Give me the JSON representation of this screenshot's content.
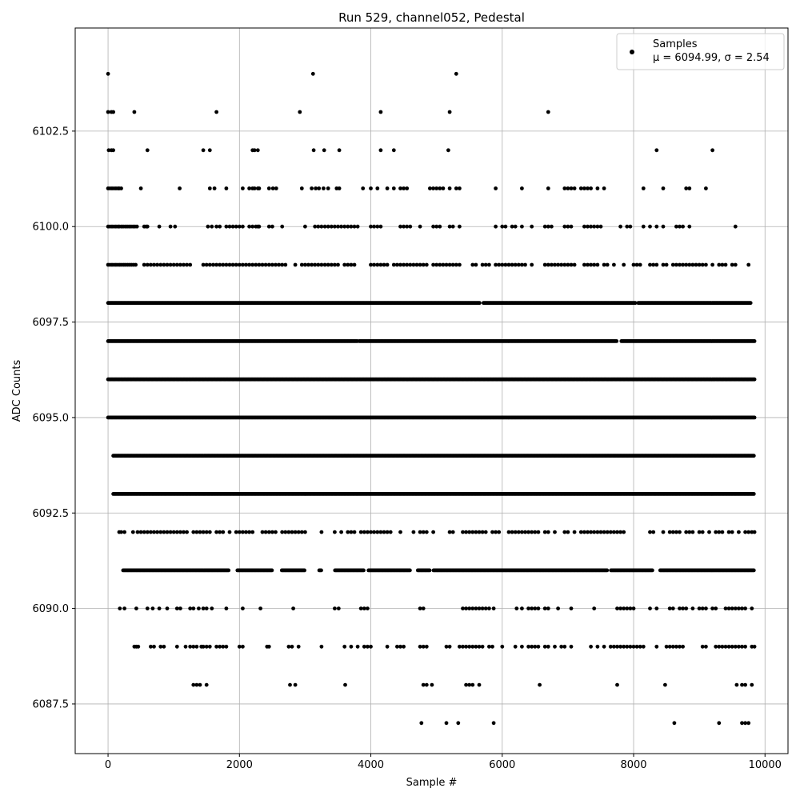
{
  "chart_data": {
    "type": "scatter",
    "title": "Run 529, channel052, Pedestal",
    "xlabel": "Sample #",
    "ylabel": "ADC Counts",
    "xlim": [
      -500,
      10350
    ],
    "ylim": [
      6086.2,
      6105.2
    ],
    "x_ticks": [
      0,
      2000,
      4000,
      6000,
      8000,
      10000
    ],
    "y_ticks": [
      6087.5,
      6090.0,
      6092.5,
      6095.0,
      6097.5,
      6100.0,
      6102.5
    ],
    "x_tick_labels": [
      "0",
      "2000",
      "4000",
      "6000",
      "8000",
      "10000"
    ],
    "y_tick_labels": [
      "6087.5",
      "6090.0",
      "6092.5",
      "6095.0",
      "6097.5",
      "6100.0",
      "6102.5"
    ],
    "grid": true,
    "legend_position": "top-right",
    "legend": {
      "label": "Samples",
      "stats": "μ = 6094.99, σ = 2.54"
    },
    "series": [
      {
        "name": "Samples",
        "color": "#000000",
        "levels": [
          {
            "y": 6104,
            "x": [
              0,
              3120,
              5300
            ]
          },
          {
            "y": 6103,
            "x": [
              0,
              50,
              80,
              400,
              1650,
              2920,
              4150,
              5200,
              6700
            ]
          },
          {
            "y": 6102,
            "x": [
              10,
              50,
              80,
              600,
              1450,
              1550,
              2200,
              2230,
              2280,
              3130,
              3290,
              3520,
              4150,
              4350,
              5180,
              8350,
              9200
            ]
          },
          {
            "y": 6101,
            "x": [
              0,
              30,
              60,
              90,
              120,
              150,
              170,
              200,
              500,
              1090,
              1550,
              1620,
              1800,
              2050,
              2150,
              2200,
              2230,
              2280,
              2300,
              2450,
              2510,
              2560,
              2950,
              3100,
              3160,
              3210,
              3280,
              3350,
              3480,
              3520,
              3880,
              4000,
              4100,
              4250,
              4350,
              4450,
              4500,
              4550,
              4900,
              4950,
              5000,
              5050,
              5100,
              5200,
              5300,
              5350,
              5900,
              6300,
              6700,
              6950,
              7000,
              7050,
              7100,
              7200,
              7250,
              7300,
              7350,
              7450,
              7550,
              8150,
              8450,
              8800,
              8850,
              9100
            ]
          },
          {
            "y": 6100,
            "x": [
              0,
              30,
              60,
              90,
              120,
              150,
              170,
              200,
              230,
              260,
              290,
              320,
              350,
              380,
              410,
              440,
              550,
              580,
              600,
              780,
              950,
              1020,
              1520,
              1580,
              1650,
              1700,
              1800,
              1850,
              1900,
              1950,
              2000,
              2050,
              2150,
              2200,
              2250,
              2280,
              2300,
              2450,
              2500,
              2650,
              3000,
              3150,
              3200,
              3250,
              3300,
              3350,
              3400,
              3450,
              3500,
              3550,
              3600,
              3650,
              3700,
              3750,
              3800,
              4000,
              4050,
              4100,
              4150,
              4450,
              4500,
              4550,
              4600,
              4750,
              4950,
              5000,
              5050,
              5200,
              5250,
              5350,
              5900,
              6000,
              6050,
              6150,
              6200,
              6300,
              6450,
              6650,
              6700,
              6750,
              6950,
              7000,
              7050,
              7250,
              7300,
              7350,
              7400,
              7450,
              7500,
              7800,
              7900,
              7950,
              8150,
              8250,
              8350,
              8450,
              8650,
              8700,
              8750,
              8850,
              9550
            ]
          },
          {
            "y": 6099,
            "x": [
              0,
              30,
              60,
              90,
              120,
              150,
              180,
              210,
              240,
              270,
              300,
              330,
              360,
              390,
              420,
              550,
              600,
              650,
              700,
              750,
              800,
              850,
              900,
              950,
              1000,
              1050,
              1100,
              1150,
              1200,
              1250,
              1450,
              1500,
              1550,
              1600,
              1650,
              1700,
              1750,
              1800,
              1850,
              1900,
              1950,
              2000,
              2050,
              2100,
              2150,
              2200,
              2250,
              2300,
              2350,
              2400,
              2450,
              2500,
              2550,
              2600,
              2650,
              2700,
              2850,
              2950,
              3000,
              3050,
              3100,
              3150,
              3200,
              3250,
              3300,
              3350,
              3400,
              3450,
              3500,
              3600,
              3650,
              3700,
              3750,
              4000,
              4050,
              4100,
              4150,
              4200,
              4250,
              4350,
              4400,
              4450,
              4500,
              4550,
              4600,
              4650,
              4700,
              4750,
              4800,
              4850,
              4950,
              5000,
              5050,
              5100,
              5150,
              5200,
              5250,
              5300,
              5350,
              5550,
              5600,
              5700,
              5750,
              5800,
              5900,
              5950,
              6000,
              6050,
              6100,
              6150,
              6200,
              6250,
              6300,
              6350,
              6450,
              6650,
              6700,
              6750,
              6800,
              6850,
              6900,
              6950,
              7000,
              7050,
              7100,
              7250,
              7300,
              7350,
              7400,
              7450,
              7550,
              7600,
              7700,
              7850,
              8000,
              8050,
              8100,
              8250,
              8300,
              8350,
              8450,
              8500,
              8600,
              8650,
              8700,
              8750,
              8800,
              8850,
              8900,
              8950,
              9000,
              9050,
              9100,
              9200,
              9300,
              9350,
              9400,
              9500,
              9550,
              9750
            ]
          },
          {
            "y": 6098,
            "x_range": [
              0,
              9780
            ],
            "gaps": [
              [
                5660,
                5700
              ],
              [
                8040,
                8060
              ]
            ]
          },
          {
            "y": 6097,
            "x_range": [
              0,
              9840
            ],
            "gaps": [
              [
                3800,
                3820
              ],
              [
                7750,
                7800
              ]
            ]
          },
          {
            "y": 6096,
            "x_range": [
              0,
              9840
            ],
            "gaps": []
          },
          {
            "y": 6095,
            "x_range": [
              0,
              9840
            ],
            "gaps": []
          },
          {
            "y": 6094,
            "x_range": [
              80,
              9840
            ],
            "gaps": []
          },
          {
            "y": 6093,
            "x_range": [
              80,
              9840
            ],
            "gaps": []
          },
          {
            "y": 6092,
            "x": [
              170,
              200,
              250,
              380,
              450,
              500,
              550,
              600,
              650,
              700,
              750,
              800,
              850,
              900,
              950,
              1000,
              1050,
              1100,
              1150,
              1200,
              1300,
              1350,
              1400,
              1450,
              1500,
              1550,
              1650,
              1700,
              1750,
              1850,
              1950,
              2000,
              2050,
              2100,
              2150,
              2200,
              2350,
              2400,
              2450,
              2500,
              2550,
              2650,
              2700,
              2750,
              2800,
              2850,
              2900,
              2950,
              3000,
              3250,
              3450,
              3550,
              3650,
              3700,
              3750,
              3850,
              3900,
              3950,
              4000,
              4050,
              4100,
              4150,
              4200,
              4250,
              4300,
              4450,
              4650,
              4750,
              4800,
              4850,
              4950,
              5200,
              5250,
              5400,
              5450,
              5500,
              5550,
              5600,
              5650,
              5700,
              5750,
              5850,
              5900,
              5950,
              6100,
              6150,
              6200,
              6250,
              6300,
              6350,
              6400,
              6450,
              6500,
              6550,
              6650,
              6700,
              6800,
              6950,
              7000,
              7100,
              7200,
              7250,
              7300,
              7350,
              7400,
              7450,
              7500,
              7550,
              7600,
              7650,
              7700,
              7750,
              7800,
              7850,
              8250,
              8300,
              8450,
              8550,
              8600,
              8650,
              8700,
              8800,
              8850,
              8900,
              9000,
              9050,
              9150,
              9250,
              9300,
              9350,
              9450,
              9500,
              9600,
              9700,
              9750,
              9800,
              9840
            ]
          },
          {
            "y": 6091,
            "x_range": [
              230,
              9840
            ],
            "gaps": [
              [
                1850,
                1960
              ],
              [
                2500,
                2630
              ],
              [
                3000,
                3200
              ],
              [
                3250,
                3440
              ],
              [
                3900,
                3950
              ],
              [
                4600,
                4700
              ],
              [
                4900,
                4950
              ],
              [
                7600,
                7650
              ],
              [
                8300,
                8400
              ]
            ]
          },
          {
            "y": 6090,
            "x": [
              180,
              250,
              430,
              600,
              680,
              780,
              900,
              1050,
              1100,
              1250,
              1300,
              1380,
              1450,
              1500,
              1580,
              1800,
              2050,
              2320,
              2820,
              3450,
              3510,
              3850,
              3900,
              3950,
              4750,
              4800,
              5400,
              5450,
              5500,
              5550,
              5600,
              5650,
              5700,
              5750,
              5800,
              5870,
              6220,
              6300,
              6400,
              6450,
              6500,
              6550,
              6650,
              6700,
              6850,
              7050,
              7400,
              7750,
              7800,
              7850,
              7900,
              7950,
              8000,
              8250,
              8350,
              8550,
              8600,
              8700,
              8750,
              8800,
              8900,
              9000,
              9050,
              9100,
              9200,
              9250,
              9400,
              9450,
              9500,
              9550,
              9600,
              9650,
              9700,
              9800
            ]
          },
          {
            "y": 6089,
            "x": [
              400,
              430,
              460,
              650,
              700,
              800,
              850,
              1050,
              1180,
              1250,
              1300,
              1350,
              1420,
              1450,
              1500,
              1550,
              1650,
              1700,
              1750,
              1800,
              2000,
              2050,
              2420,
              2450,
              2750,
              2800,
              2900,
              3250,
              3600,
              3700,
              3800,
              3900,
              3950,
              4000,
              4250,
              4400,
              4450,
              4500,
              4750,
              4800,
              4850,
              5150,
              5200,
              5350,
              5400,
              5450,
              5500,
              5550,
              5600,
              5650,
              5700,
              5800,
              5850,
              6000,
              6200,
              6300,
              6400,
              6450,
              6500,
              6550,
              6650,
              6700,
              6800,
              6900,
              6950,
              7050,
              7350,
              7450,
              7550,
              7650,
              7700,
              7750,
              7800,
              7850,
              7900,
              7950,
              8000,
              8050,
              8100,
              8150,
              8350,
              8500,
              8550,
              8600,
              8650,
              8700,
              8750,
              9050,
              9100,
              9250,
              9300,
              9350,
              9400,
              9450,
              9500,
              9550,
              9600,
              9650,
              9700,
              9800,
              9840
            ]
          },
          {
            "y": 6088,
            "x": [
              1300,
              1350,
              1400,
              1500,
              2770,
              2850,
              3610,
              4800,
              4850,
              4930,
              5450,
              5500,
              5550,
              5650,
              6570,
              7750,
              8480,
              9570,
              9650,
              9700,
              9800
            ]
          },
          {
            "y": 6087,
            "x": [
              4770,
              5150,
              5330,
              5870,
              8620,
              9300,
              9650,
              9700,
              9750
            ]
          }
        ]
      }
    ]
  }
}
